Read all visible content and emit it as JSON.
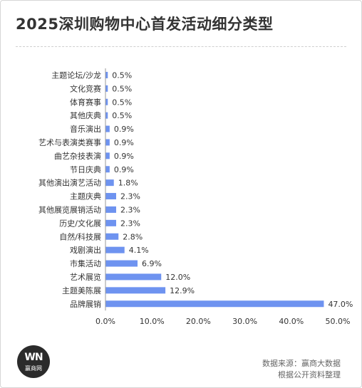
{
  "title": "2025深圳购物中心首发活动细分类型",
  "logo": {
    "mark": "WN",
    "text": "赢商网"
  },
  "source": {
    "line1": "数据来源：赢商大数据",
    "line2": "根据公开资料整理"
  },
  "colors": {
    "bar": "#6e93f0",
    "axis": "#999999"
  },
  "chart_data": {
    "type": "bar",
    "orientation": "horizontal",
    "categories": [
      "主题论坛/沙龙",
      "文化竞赛",
      "体育赛事",
      "其他庆典",
      "音乐演出",
      "艺术与表演类赛事",
      "曲艺杂技表演",
      "节日庆典",
      "其他演出演艺活动",
      "主题庆典",
      "其他展览展销活动",
      "历史/文化展",
      "自然/科技展",
      "戏剧演出",
      "市集活动",
      "艺术展览",
      "主题美陈展",
      "品牌展销"
    ],
    "values": [
      0.5,
      0.5,
      0.5,
      0.5,
      0.9,
      0.9,
      0.9,
      0.9,
      1.8,
      2.3,
      2.3,
      2.3,
      2.8,
      4.1,
      6.9,
      12.0,
      12.9,
      47.0
    ],
    "value_labels": [
      "0.5%",
      "0.5%",
      "0.5%",
      "0.5%",
      "0.9%",
      "0.9%",
      "0.9%",
      "0.9%",
      "1.8%",
      "2.3%",
      "2.3%",
      "2.3%",
      "2.8%",
      "4.1%",
      "6.9%",
      "12.0%",
      "12.9%",
      "47.0%"
    ],
    "xlim": [
      0,
      50
    ],
    "xticks": [
      "0.0%",
      "10.0%",
      "20.0%",
      "30.0%",
      "40.0%",
      "50.0%"
    ],
    "xtick_values": [
      0,
      10,
      20,
      30,
      40,
      50
    ],
    "grid": false,
    "legend": "none"
  }
}
